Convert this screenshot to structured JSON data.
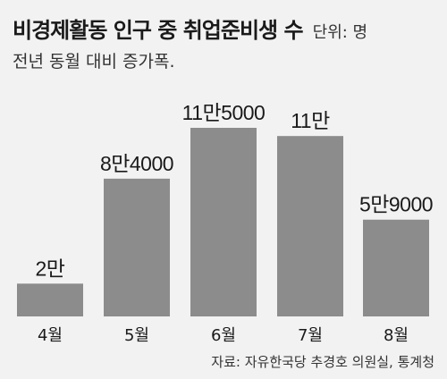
{
  "chart_data": {
    "type": "bar",
    "title": "비경제활동 인구 중 취업준비생 수",
    "unit_note": "단위: 명",
    "subtitle": "전년 동월 대비 증가폭.",
    "categories": [
      "4월",
      "5월",
      "6월",
      "7월",
      "8월"
    ],
    "values": [
      20000,
      84000,
      115000,
      110000,
      59000
    ],
    "value_labels": [
      "2만",
      "8만4000",
      "11만5000",
      "11만",
      "5만9000"
    ],
    "ylim": [
      0,
      115000
    ],
    "grid": false,
    "source": "자료: 자유한국당 추경호 의원실, 통계청",
    "colors": {
      "bar": "#8c8c8c",
      "background": "#f2f2f2"
    }
  }
}
